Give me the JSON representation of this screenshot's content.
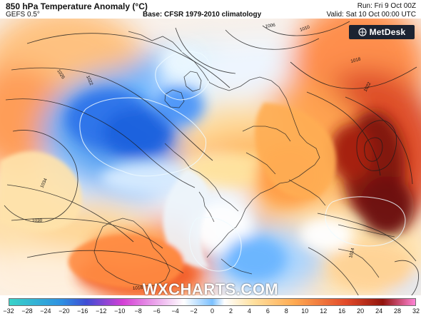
{
  "header": {
    "title": "850 hPa Temperature Anomaly (°C)",
    "model": "GEFS 0.5°",
    "base": "Base: CFSR 1979-2010 climatology",
    "run": "Run: Fri 9 Oct 00Z",
    "valid": "Valid: Sat 10 Oct 00:00 UTC"
  },
  "brand": {
    "logo": "MetDesk",
    "watermark": "WXCHARTS.COM"
  },
  "map": {
    "isobar_labels": [
      "1006",
      "1010",
      "1026",
      "1022",
      "1034",
      "1030",
      "1018",
      "1022",
      "1014",
      "1016"
    ]
  },
  "legend": {
    "labels": [
      "−32",
      "−28",
      "−24",
      "−20",
      "−16",
      "−12",
      "−10",
      "−8",
      "−6",
      "−4",
      "−2",
      "0",
      "2",
      "4",
      "6",
      "8",
      "10",
      "12",
      "16",
      "20",
      "24",
      "28",
      "32"
    ]
  },
  "colors": {
    "deep_blue": "#1d6fe6",
    "cold": "#6ab5ff",
    "neutral": "#ffffff",
    "warm": "#ffab52",
    "hot": "#e24a2a",
    "very_hot": "#91140c"
  }
}
